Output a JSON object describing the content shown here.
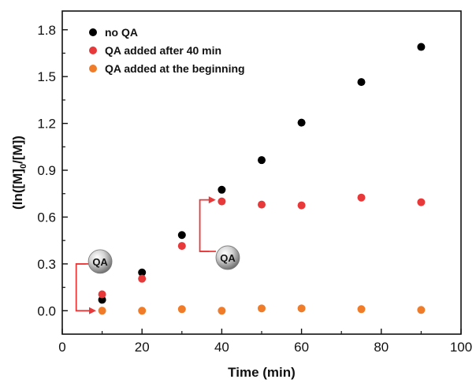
{
  "chart_data": {
    "type": "scatter",
    "xlabel": "Time (min)",
    "ylabel_parts": {
      "pre": "(ln([M]",
      "sub": "0",
      "post": "/[M])"
    },
    "xlim": [
      0,
      100
    ],
    "ylim": [
      -0.15,
      1.92
    ],
    "x_ticks": [
      0,
      20,
      40,
      60,
      80,
      100
    ],
    "y_ticks": [
      0.0,
      0.3,
      0.6,
      0.9,
      1.2,
      1.5,
      1.8
    ],
    "x_tick_labels": [
      "0",
      "20",
      "40",
      "60",
      "80",
      "100"
    ],
    "y_tick_labels": [
      "0.0",
      "0.3",
      "0.6",
      "0.9",
      "1.2",
      "1.5",
      "1.8"
    ],
    "grid": false,
    "legend_position": "top-left",
    "series": [
      {
        "name": "no QA",
        "color": "#000000",
        "x": [
          10,
          20,
          30,
          40,
          50,
          60,
          75,
          90
        ],
        "y": [
          0.07,
          0.245,
          0.485,
          0.775,
          0.965,
          1.205,
          1.465,
          1.69
        ]
      },
      {
        "name": "QA added after 40 min",
        "color": "#e8393a",
        "x": [
          10,
          20,
          30,
          40,
          50,
          60,
          75,
          90
        ],
        "y": [
          0.105,
          0.205,
          0.415,
          0.7,
          0.68,
          0.675,
          0.725,
          0.695
        ]
      },
      {
        "name": "QA added at the beginning",
        "color": "#f07c2a",
        "x": [
          10,
          20,
          30,
          40,
          50,
          60,
          75,
          90
        ],
        "y": [
          0.0,
          0.0,
          0.01,
          0.0,
          0.015,
          0.015,
          0.01,
          0.005
        ]
      }
    ],
    "annotations": [
      {
        "label": "QA",
        "kind": "bracket-arrow",
        "target": "QA added at the beginning",
        "x_from": 3.5,
        "y_from": 0.3,
        "x_to": 8.5,
        "y_to": 0.0,
        "color": "#e8393a"
      },
      {
        "label": "QA",
        "kind": "bracket-arrow",
        "target": "QA added after 40 min",
        "x_from": 34.5,
        "y_from": 0.38,
        "x_to": 38.5,
        "y_to": 0.71,
        "color": "#e8393a"
      }
    ]
  }
}
